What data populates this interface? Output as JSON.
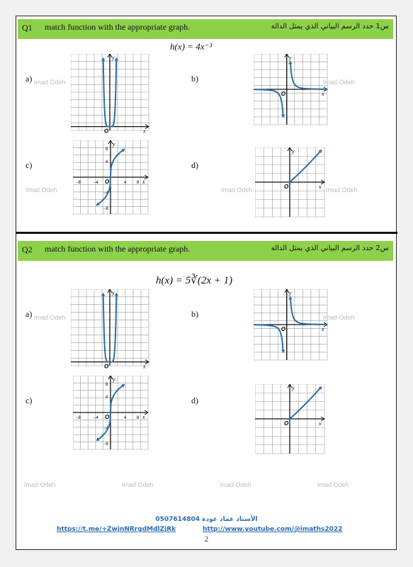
{
  "q1": {
    "number": "Q1",
    "prompt": "match function with the appropriate graph.",
    "prompt_ar": "س1   حدد الرسم البياني الذي يمثل الدالة",
    "formula": "h(x) = 4x⁻³",
    "options": [
      "a)",
      "b)",
      "c)",
      "d)"
    ]
  },
  "q2": {
    "number": "Q2",
    "prompt": "match function with the appropriate graph.",
    "prompt_ar": "س2   حدد الرسم البياني الذي يمثل الدالة",
    "formula": "h(x) = 5∛(2x + 1)",
    "options": [
      "a)",
      "b)",
      "c)",
      "d)"
    ]
  },
  "watermark": "Imad Odeh",
  "graph_labels": {
    "x": "x",
    "y": "y",
    "origin": "O",
    "ticks": [
      "−8",
      "−4",
      "4",
      "8",
      "8",
      "4",
      "−4",
      "−8"
    ]
  },
  "footer": {
    "phone": "0507614804 الأستاذ عماد عودة",
    "telegram": "https://t.me/+ZwjnNRrgdMdlZjRk",
    "youtube": "http://www.youtube.com/@imaths2022",
    "page": "2"
  },
  "colors": {
    "header": "#8dd14a",
    "curve": "#2f6f9f",
    "link": "#2b6cb0"
  }
}
